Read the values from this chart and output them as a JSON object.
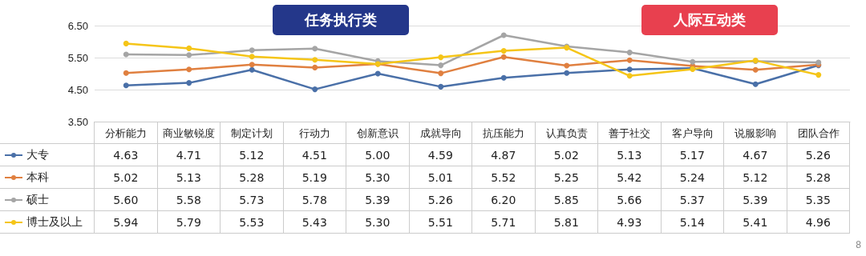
{
  "chart_data": {
    "type": "line",
    "categories": [
      "分析能力",
      "商业敏锐度",
      "制定计划",
      "行动力",
      "创新意识",
      "成就导向",
      "抗压能力",
      "认真负责",
      "善于社交",
      "客户导向",
      "说服影响",
      "团队合作"
    ],
    "series": [
      {
        "name": "大专",
        "color": "#4a70a8",
        "values": [
          4.63,
          4.71,
          5.12,
          4.51,
          5.0,
          4.59,
          4.87,
          5.02,
          5.13,
          5.17,
          4.67,
          5.26
        ],
        "value_labels": [
          "4.63",
          "4.71",
          "5.12",
          "4.51",
          "5.00",
          "4.59",
          "4.87",
          "5.02",
          "5.13",
          "5.17",
          "4.67",
          "5.26"
        ]
      },
      {
        "name": "本科",
        "color": "#e08040",
        "values": [
          5.02,
          5.13,
          5.28,
          5.19,
          5.3,
          5.01,
          5.52,
          5.25,
          5.42,
          5.24,
          5.12,
          5.28
        ],
        "value_labels": [
          "5.02",
          "5.13",
          "5.28",
          "5.19",
          "5.30",
          "5.01",
          "5.52",
          "5.25",
          "5.42",
          "5.24",
          "5.12",
          "5.28"
        ]
      },
      {
        "name": "硕士",
        "color": "#a5a5a5",
        "values": [
          5.6,
          5.58,
          5.73,
          5.78,
          5.39,
          5.26,
          6.2,
          5.85,
          5.66,
          5.37,
          5.39,
          5.35
        ],
        "value_labels": [
          "5.60",
          "5.58",
          "5.73",
          "5.78",
          "5.39",
          "5.26",
          "6.20",
          "5.85",
          "5.66",
          "5.37",
          "5.39",
          "5.35"
        ]
      },
      {
        "name": "博士及以上",
        "color": "#f5c518",
        "values": [
          5.94,
          5.79,
          5.53,
          5.43,
          5.3,
          5.51,
          5.71,
          5.81,
          4.93,
          5.14,
          5.41,
          4.96
        ],
        "value_labels": [
          "5.94",
          "5.79",
          "5.53",
          "5.43",
          "5.30",
          "5.51",
          "5.71",
          "5.81",
          "4.93",
          "5.14",
          "5.41",
          "4.96"
        ]
      }
    ],
    "ylim": [
      3.5,
      6.5
    ],
    "yticks": [
      {
        "value": 3.5,
        "label": "3.50"
      },
      {
        "value": 4.5,
        "label": "4.50"
      },
      {
        "value": 5.5,
        "label": "5.50"
      },
      {
        "value": 6.5,
        "label": "6.50"
      }
    ],
    "grid": "y",
    "marker": "circle",
    "line_style": "solid",
    "legend": "left",
    "annotations": [
      "任务执行类",
      "人际互动类",
      "8"
    ]
  }
}
